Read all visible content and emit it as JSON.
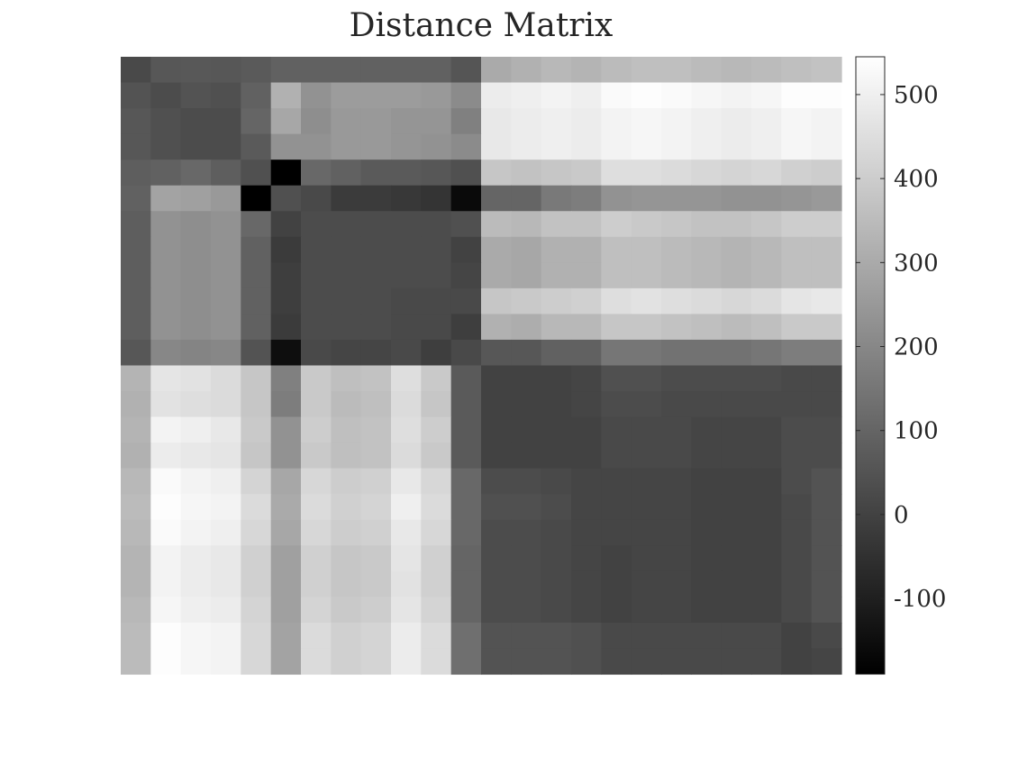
{
  "chart_data": {
    "type": "heatmap",
    "title": "Distance Matrix",
    "colormap": "gray",
    "color_range": [
      -190,
      545
    ],
    "colorbar_ticks": [
      500,
      400,
      300,
      200,
      100,
      0,
      -100
    ],
    "n_rows": 24,
    "n_cols": 24,
    "values": [
      [
        20,
        60,
        65,
        60,
        70,
        90,
        90,
        90,
        90,
        90,
        90,
        55,
        300,
        320,
        340,
        330,
        350,
        360,
        360,
        350,
        340,
        350,
        360,
        370
      ],
      [
        50,
        30,
        50,
        40,
        90,
        320,
        230,
        260,
        260,
        260,
        250,
        210,
        490,
        500,
        510,
        500,
        530,
        540,
        530,
        520,
        510,
        520,
        540,
        540
      ],
      [
        60,
        40,
        30,
        30,
        100,
        290,
        220,
        250,
        250,
        240,
        240,
        180,
        480,
        490,
        500,
        490,
        510,
        520,
        510,
        500,
        490,
        500,
        520,
        510
      ],
      [
        60,
        40,
        30,
        30,
        70,
        230,
        230,
        250,
        250,
        240,
        230,
        210,
        480,
        490,
        500,
        490,
        510,
        520,
        510,
        500,
        490,
        500,
        520,
        510
      ],
      [
        80,
        90,
        110,
        80,
        40,
        -190,
        110,
        90,
        70,
        70,
        60,
        40,
        380,
        370,
        380,
        390,
        450,
        450,
        440,
        430,
        420,
        430,
        410,
        400
      ],
      [
        90,
        280,
        270,
        250,
        -190,
        40,
        20,
        -20,
        -20,
        -30,
        -40,
        -160,
        100,
        100,
        160,
        170,
        230,
        240,
        240,
        240,
        230,
        230,
        240,
        250
      ],
      [
        80,
        230,
        220,
        230,
        110,
        0,
        30,
        30,
        30,
        30,
        30,
        40,
        350,
        340,
        370,
        370,
        400,
        390,
        380,
        370,
        370,
        380,
        400,
        400
      ],
      [
        80,
        230,
        220,
        230,
        90,
        -20,
        30,
        30,
        30,
        30,
        30,
        0,
        300,
        290,
        320,
        320,
        360,
        360,
        350,
        340,
        330,
        340,
        360,
        360
      ],
      [
        80,
        230,
        220,
        230,
        90,
        -10,
        30,
        30,
        30,
        30,
        30,
        10,
        300,
        290,
        320,
        320,
        360,
        360,
        350,
        340,
        330,
        340,
        360,
        360
      ],
      [
        80,
        230,
        220,
        230,
        90,
        -10,
        30,
        30,
        30,
        20,
        20,
        20,
        380,
        390,
        400,
        410,
        450,
        460,
        450,
        440,
        430,
        440,
        470,
        480
      ],
      [
        80,
        230,
        220,
        230,
        90,
        -20,
        30,
        30,
        30,
        20,
        20,
        -10,
        320,
        310,
        340,
        340,
        380,
        380,
        370,
        360,
        350,
        360,
        390,
        390
      ],
      [
        60,
        200,
        190,
        200,
        50,
        -150,
        20,
        10,
        10,
        20,
        -10,
        20,
        60,
        60,
        90,
        90,
        150,
        150,
        140,
        140,
        140,
        150,
        170,
        170
      ],
      [
        330,
        470,
        460,
        440,
        380,
        180,
        390,
        360,
        370,
        450,
        390,
        70,
        0,
        0,
        0,
        10,
        40,
        40,
        30,
        30,
        30,
        30,
        20,
        20
      ],
      [
        320,
        460,
        450,
        440,
        380,
        170,
        390,
        350,
        360,
        440,
        380,
        70,
        0,
        0,
        0,
        10,
        30,
        30,
        20,
        20,
        20,
        20,
        20,
        20
      ],
      [
        330,
        510,
        500,
        480,
        390,
        230,
        400,
        360,
        370,
        450,
        400,
        70,
        0,
        0,
        0,
        0,
        20,
        20,
        20,
        10,
        10,
        10,
        30,
        30
      ],
      [
        320,
        490,
        480,
        470,
        380,
        230,
        390,
        360,
        370,
        440,
        390,
        70,
        0,
        0,
        0,
        0,
        20,
        20,
        20,
        10,
        10,
        10,
        30,
        30
      ],
      [
        340,
        530,
        510,
        500,
        420,
        290,
        430,
        400,
        410,
        480,
        430,
        110,
        30,
        30,
        20,
        10,
        10,
        10,
        10,
        0,
        0,
        0,
        30,
        50
      ],
      [
        350,
        540,
        520,
        510,
        440,
        300,
        440,
        410,
        420,
        500,
        440,
        110,
        40,
        40,
        30,
        10,
        10,
        10,
        10,
        0,
        0,
        0,
        20,
        50
      ],
      [
        340,
        530,
        510,
        500,
        430,
        290,
        430,
        400,
        410,
        480,
        430,
        110,
        30,
        30,
        20,
        10,
        10,
        10,
        10,
        0,
        0,
        0,
        20,
        50
      ],
      [
        330,
        510,
        490,
        480,
        410,
        270,
        410,
        380,
        390,
        470,
        410,
        100,
        30,
        30,
        20,
        10,
        0,
        10,
        10,
        0,
        0,
        0,
        20,
        50
      ],
      [
        330,
        510,
        490,
        480,
        410,
        270,
        410,
        380,
        390,
        460,
        410,
        100,
        30,
        30,
        20,
        10,
        0,
        10,
        10,
        0,
        0,
        0,
        20,
        50
      ],
      [
        340,
        520,
        500,
        490,
        420,
        270,
        420,
        390,
        400,
        470,
        420,
        100,
        30,
        30,
        20,
        10,
        0,
        10,
        10,
        0,
        0,
        0,
        20,
        50
      ],
      [
        350,
        540,
        520,
        510,
        430,
        280,
        440,
        410,
        420,
        490,
        440,
        130,
        50,
        50,
        50,
        40,
        20,
        20,
        20,
        20,
        20,
        20,
        0,
        20
      ],
      [
        350,
        540,
        520,
        510,
        430,
        280,
        440,
        410,
        420,
        490,
        440,
        130,
        50,
        50,
        50,
        40,
        20,
        20,
        20,
        20,
        20,
        20,
        0,
        10
      ]
    ]
  }
}
